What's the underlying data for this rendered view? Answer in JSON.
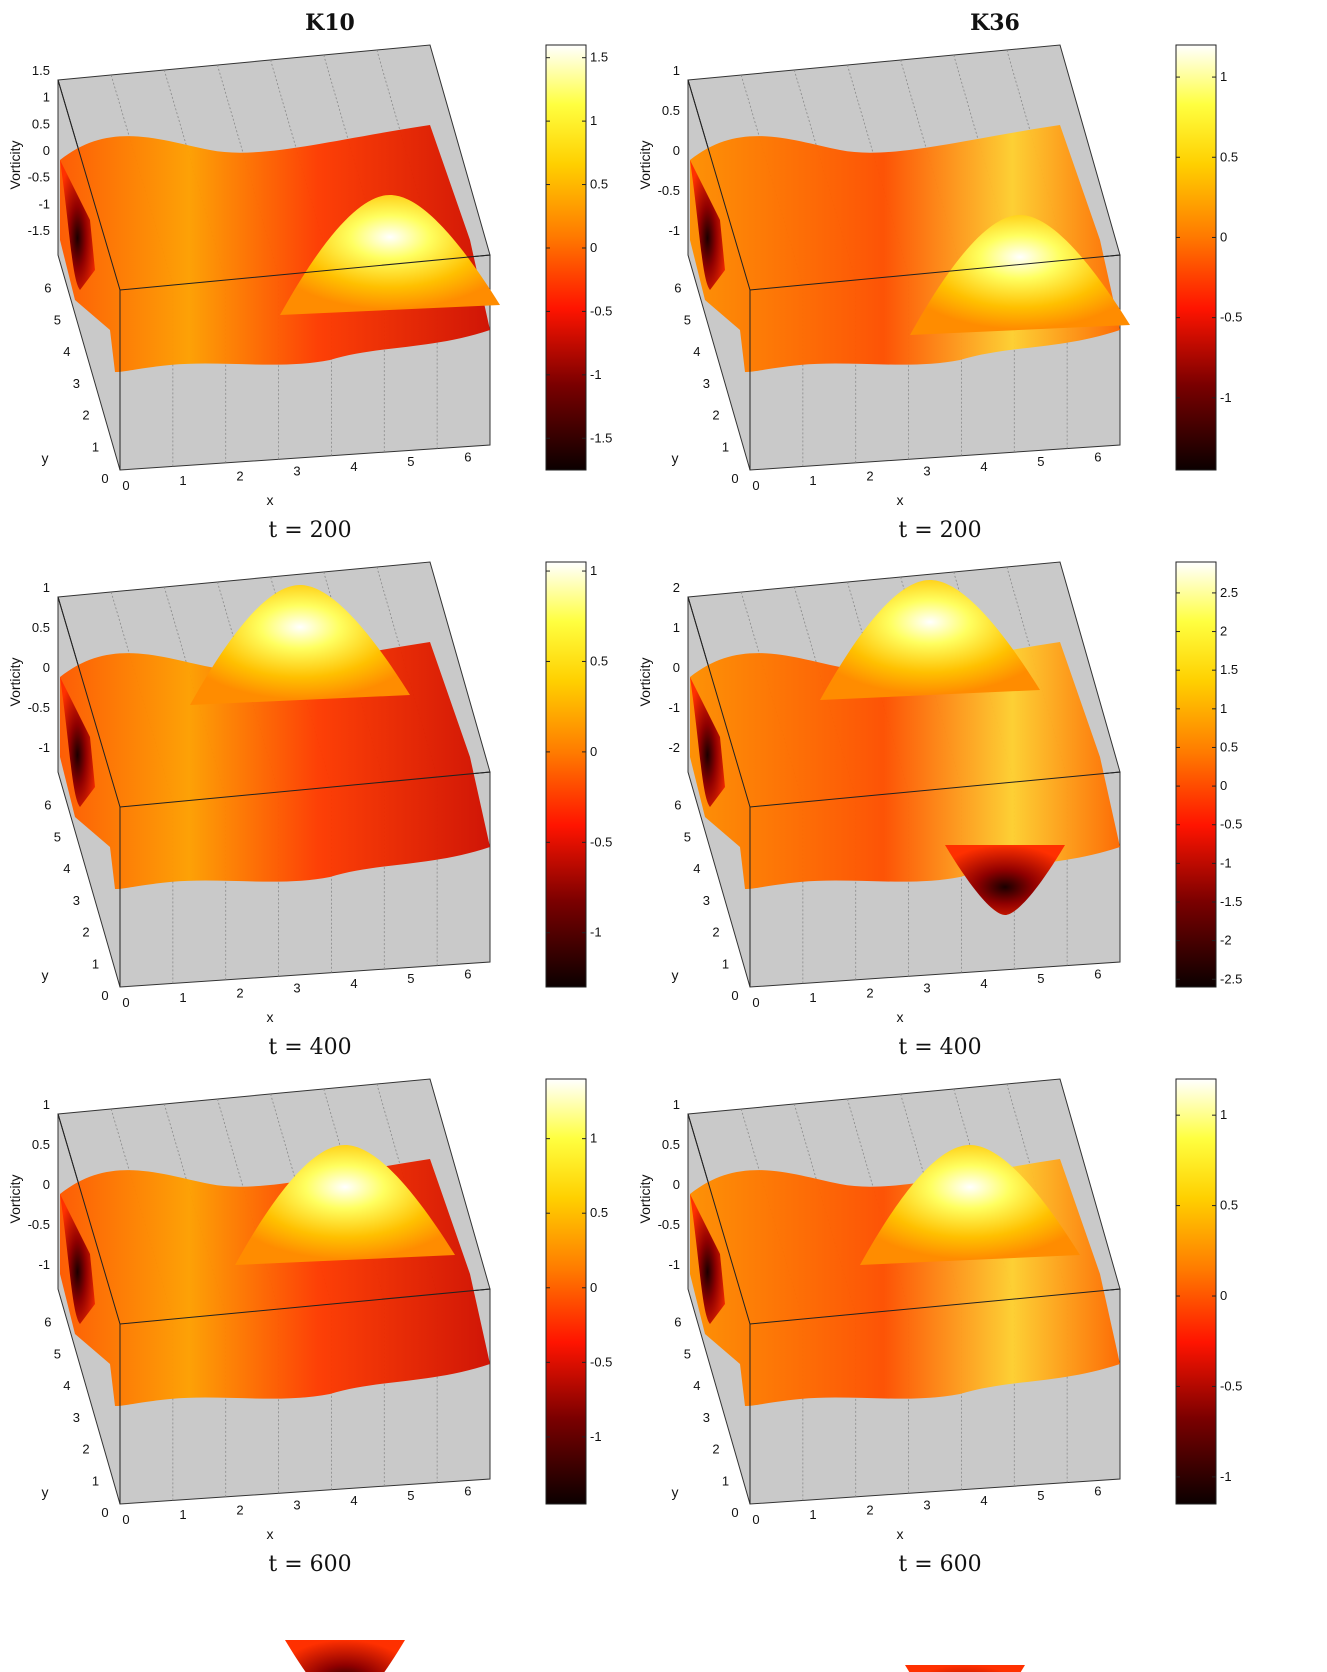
{
  "columns": [
    {
      "title": "K10"
    },
    {
      "title": "K36"
    }
  ],
  "chart_data": [
    {
      "type": "surface",
      "column": "K10",
      "time_label": "t = 200",
      "xlabel": "x",
      "ylabel": "y",
      "zlabel": "Vorticity",
      "x_ticks": [
        "0",
        "1",
        "2",
        "3",
        "4",
        "5",
        "6"
      ],
      "y_ticks": [
        "0",
        "1",
        "2",
        "3",
        "4",
        "5",
        "6"
      ],
      "z_ticks": [
        "1.5",
        "1",
        "0.5",
        "0",
        "-0.5",
        "-1",
        "-1.5"
      ],
      "colorbar": {
        "min": -1.75,
        "max": 1.6,
        "ticks": [
          1.5,
          1,
          0.5,
          0,
          -0.5,
          -1,
          -1.5
        ],
        "tick_labels": [
          "1.5",
          "1",
          "0.5",
          "0",
          "-0.5",
          "-1",
          "-1.5"
        ]
      },
      "colormap": "hot"
    },
    {
      "type": "surface",
      "column": "K36",
      "time_label": "t = 200",
      "xlabel": "x",
      "ylabel": "y",
      "zlabel": "Vorticity",
      "x_ticks": [
        "0",
        "1",
        "2",
        "3",
        "4",
        "5",
        "6"
      ],
      "y_ticks": [
        "0",
        "1",
        "2",
        "3",
        "4",
        "5",
        "6"
      ],
      "z_ticks": [
        "1",
        "0.5",
        "0",
        "-0.5",
        "-1"
      ],
      "colorbar": {
        "min": -1.45,
        "max": 1.2,
        "ticks": [
          1,
          0.5,
          0,
          -0.5,
          -1
        ],
        "tick_labels": [
          "1",
          "0.5",
          "0",
          "-0.5",
          "-1"
        ]
      },
      "colormap": "hot"
    },
    {
      "type": "surface",
      "column": "K10",
      "time_label": "t = 400",
      "xlabel": "x",
      "ylabel": "y",
      "zlabel": "Vorticity",
      "x_ticks": [
        "0",
        "1",
        "2",
        "3",
        "4",
        "5",
        "6"
      ],
      "y_ticks": [
        "0",
        "1",
        "2",
        "3",
        "4",
        "5",
        "6"
      ],
      "z_ticks": [
        "1",
        "0.5",
        "0",
        "-0.5",
        "-1"
      ],
      "colorbar": {
        "min": -1.3,
        "max": 1.05,
        "ticks": [
          1,
          0.5,
          0,
          -0.5,
          -1
        ],
        "tick_labels": [
          "1",
          "0.5",
          "0",
          "-0.5",
          "-1"
        ]
      },
      "colormap": "hot"
    },
    {
      "type": "surface",
      "column": "K36",
      "time_label": "t = 400",
      "xlabel": "x",
      "ylabel": "y",
      "zlabel": "Vorticity",
      "x_ticks": [
        "0",
        "1",
        "2",
        "3",
        "4",
        "5",
        "6"
      ],
      "y_ticks": [
        "0",
        "1",
        "2",
        "3",
        "4",
        "5",
        "6"
      ],
      "z_ticks": [
        "2",
        "1",
        "0",
        "-1",
        "-2"
      ],
      "colorbar": {
        "min": -2.6,
        "max": 2.9,
        "ticks": [
          2.5,
          2,
          1.5,
          1,
          0.5,
          0,
          -0.5,
          -1,
          -1.5,
          -2,
          -2.5
        ],
        "tick_labels": [
          "2.5",
          "2",
          "1.5",
          "1",
          "0.5",
          "0",
          "-0.5",
          "-1",
          "-1.5",
          "-2",
          "-2.5"
        ]
      },
      "colormap": "hot"
    },
    {
      "type": "surface",
      "column": "K10",
      "time_label": "t = 600",
      "xlabel": "x",
      "ylabel": "y",
      "zlabel": "Vorticity",
      "x_ticks": [
        "0",
        "1",
        "2",
        "3",
        "4",
        "5",
        "6"
      ],
      "y_ticks": [
        "0",
        "1",
        "2",
        "3",
        "4",
        "5",
        "6"
      ],
      "z_ticks": [
        "1",
        "0.5",
        "0",
        "-0.5",
        "-1"
      ],
      "colorbar": {
        "min": -1.45,
        "max": 1.4,
        "ticks": [
          1,
          0.5,
          0,
          -0.5,
          -1
        ],
        "tick_labels": [
          "1",
          "0.5",
          "0",
          "-0.5",
          "-1"
        ]
      },
      "colormap": "hot"
    },
    {
      "type": "surface",
      "column": "K36",
      "time_label": "t = 600",
      "xlabel": "x",
      "ylabel": "y",
      "zlabel": "Vorticity",
      "x_ticks": [
        "0",
        "1",
        "2",
        "3",
        "4",
        "5",
        "6"
      ],
      "y_ticks": [
        "0",
        "1",
        "2",
        "3",
        "4",
        "5",
        "6"
      ],
      "z_ticks": [
        "1",
        "0.5",
        "0",
        "-0.5",
        "-1"
      ],
      "colorbar": {
        "min": -1.15,
        "max": 1.2,
        "ticks": [
          1,
          0.5,
          0,
          -0.5,
          -1
        ],
        "tick_labels": [
          "1",
          "0.5",
          "0",
          "-0.5",
          "-1"
        ]
      },
      "colormap": "hot"
    }
  ]
}
